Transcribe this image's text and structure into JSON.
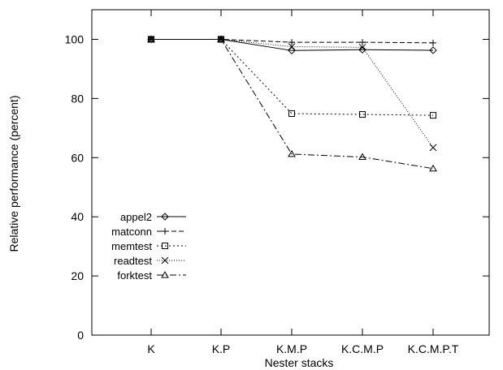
{
  "chart_data": {
    "type": "line",
    "xlabel": "Nester stacks",
    "ylabel": "Relative performance (percent)",
    "categories": [
      "K",
      "K.P",
      "K.M.P",
      "K.C.M.P",
      "K.C.M.P.T"
    ],
    "ylim": [
      0,
      110
    ],
    "yticks": [
      0,
      20,
      40,
      60,
      80,
      100
    ],
    "grid": false,
    "legend_position": "left-middle",
    "series": [
      {
        "name": "appel2",
        "marker": "diamond",
        "dash": "solid",
        "values": [
          100,
          100,
          96.2,
          96.5,
          96.3
        ]
      },
      {
        "name": "matconn",
        "marker": "plus",
        "dash": "dashed",
        "values": [
          100,
          100,
          99.0,
          99.0,
          98.8
        ]
      },
      {
        "name": "memtest",
        "marker": "square",
        "dash": "dotted",
        "values": [
          100,
          100,
          74.9,
          74.6,
          74.3
        ]
      },
      {
        "name": "readtest",
        "marker": "cross",
        "dash": "finedot",
        "values": [
          100,
          100,
          97.5,
          97.3,
          63.4
        ]
      },
      {
        "name": "forktest",
        "marker": "triangle",
        "dash": "dashdot",
        "values": [
          100,
          100,
          61.2,
          60.2,
          56.3
        ]
      }
    ]
  }
}
